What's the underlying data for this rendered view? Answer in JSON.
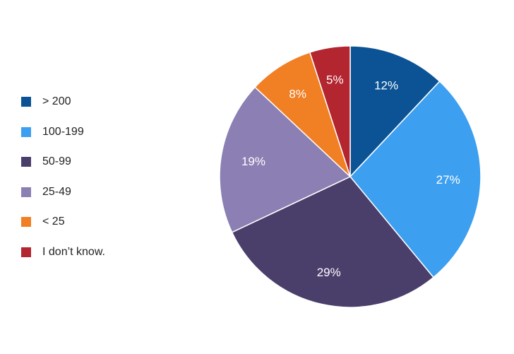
{
  "chart_data": {
    "type": "pie",
    "title": "",
    "categories": [
      "> 200",
      "100-199",
      "50-99",
      "25-49",
      "< 25",
      "I don’t know."
    ],
    "values": [
      12,
      27,
      29,
      19,
      8,
      5
    ],
    "labels": [
      "12%",
      "27%",
      "29%",
      "19%",
      "8%",
      "5%"
    ],
    "colors": [
      "#0B5394",
      "#3D9FEF",
      "#4A3F6B",
      "#8B7FB3",
      "#F17F24",
      "#B3252F"
    ],
    "legend_position": "left",
    "start_angle": "12 o'clock",
    "direction": "clockwise"
  }
}
